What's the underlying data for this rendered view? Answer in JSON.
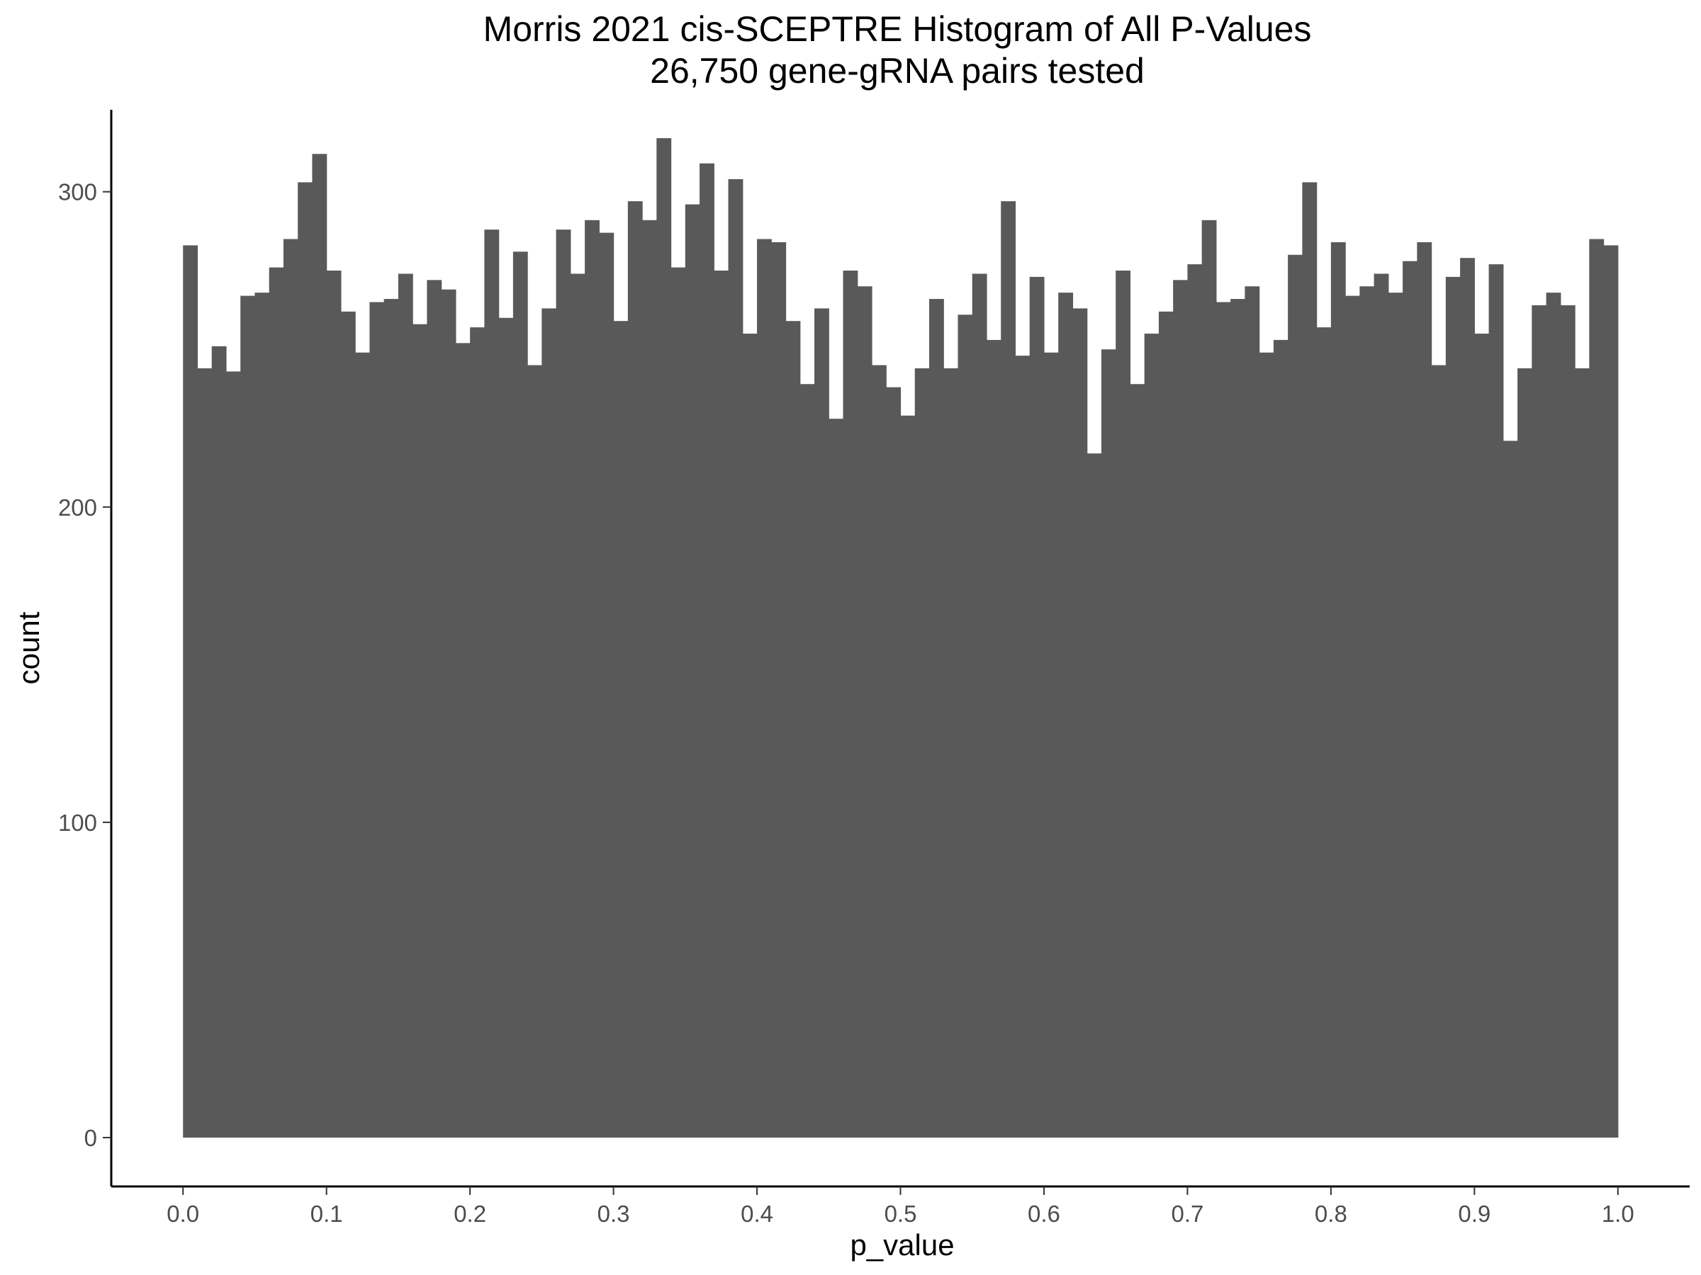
{
  "chart_data": {
    "type": "bar",
    "subtype": "histogram",
    "title": "Morris 2021 cis-SCEPTRE Histogram of All P-Values",
    "subtitle": "26,750 gene-gRNA pairs tested",
    "xlabel": "p_value",
    "ylabel": "count",
    "xlim": [
      -0.05,
      1.05
    ],
    "ylim": [
      -15.5,
      326
    ],
    "bin_width": 0.01,
    "bin_start": 0.0,
    "values": [
      283,
      244,
      251,
      243,
      267,
      268,
      276,
      285,
      303,
      312,
      275,
      262,
      249,
      265,
      266,
      274,
      258,
      272,
      269,
      252,
      257,
      288,
      260,
      281,
      245,
      263,
      288,
      274,
      291,
      287,
      259,
      297,
      291,
      317,
      276,
      296,
      309,
      275,
      304,
      255,
      285,
      284,
      259,
      239,
      263,
      228,
      275,
      270,
      245,
      238,
      229,
      244,
      266,
      244,
      261,
      274,
      253,
      297,
      248,
      273,
      249,
      268,
      263,
      217,
      250,
      275,
      239,
      255,
      262,
      272,
      277,
      291,
      265,
      266,
      270,
      249,
      253,
      280,
      303,
      257,
      284,
      267,
      270,
      274,
      268,
      278,
      284,
      245,
      273,
      279,
      255,
      277,
      221,
      244,
      264,
      268,
      264,
      244,
      285,
      283
    ],
    "x_ticks": [
      "0.0",
      "0.1",
      "0.2",
      "0.3",
      "0.4",
      "0.5",
      "0.6",
      "0.7",
      "0.8",
      "0.9",
      "1.0"
    ],
    "y_ticks": [
      "0",
      "100",
      "200",
      "300"
    ],
    "bar_color": "#595959",
    "grid": false,
    "legend": "none"
  }
}
